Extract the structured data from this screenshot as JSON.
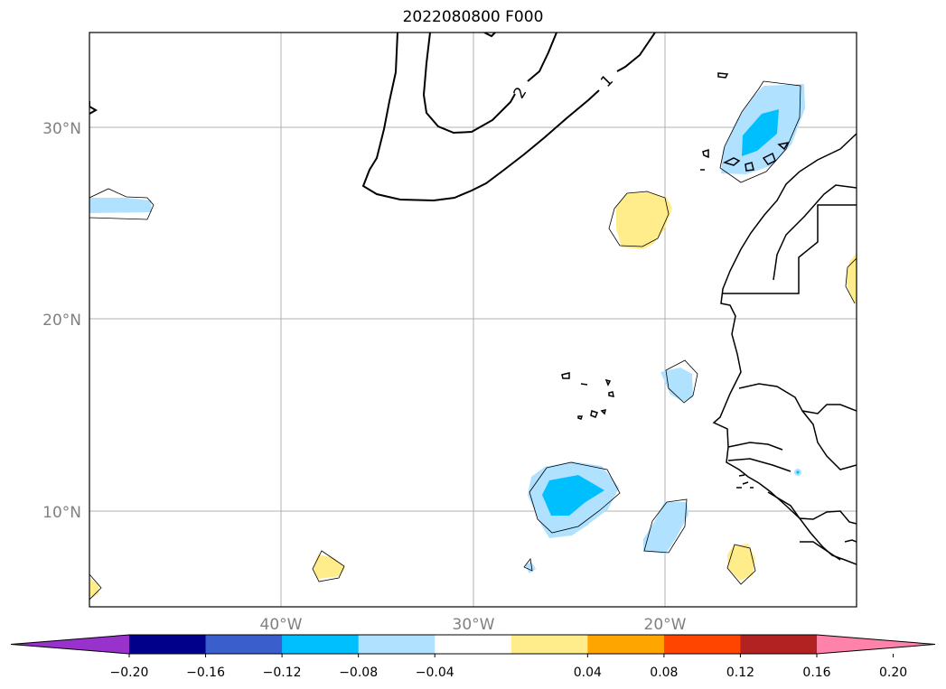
{
  "title": "2022080800 F000",
  "map": {
    "lat_ticks": [
      "30°N",
      "20°N",
      "10°N"
    ],
    "lon_ticks": [
      "40°W",
      "30°W",
      "20°W"
    ],
    "contour_labels": [
      "2",
      "1"
    ],
    "grid": true
  },
  "colorbar": {
    "ticks": [
      "−0.20",
      "−0.16",
      "−0.12",
      "−0.08",
      "−0.04",
      "0.04",
      "0.08",
      "0.12",
      "0.16",
      "0.20"
    ],
    "colors": {
      "under": "#9932cc",
      "b1": "#00008b",
      "b2": "#3a5fcd",
      "b3": "#00bfff",
      "b4": "#b0e2ff",
      "b5": "#ffffff",
      "b6": "#ffec8b",
      "b7": "#ffa500",
      "b8": "#ff4500",
      "b9": "#b22222",
      "over": "#ff82ab"
    }
  }
}
